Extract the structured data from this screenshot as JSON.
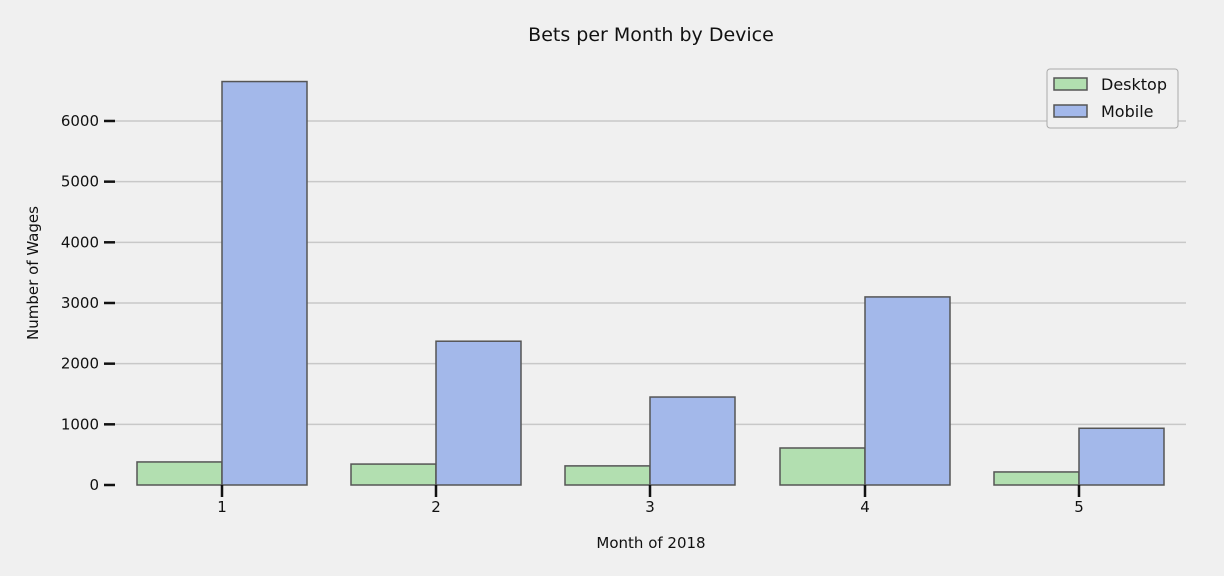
{
  "chart_data": {
    "type": "bar",
    "title": "Bets per Month by Device",
    "xlabel": "Month of 2018",
    "ylabel": "Number of Wages",
    "categories": [
      "1",
      "2",
      "3",
      "4",
      "5"
    ],
    "series": [
      {
        "name": "Desktop",
        "values": [
          380,
          345,
          315,
          610,
          215
        ],
        "color": "#b2dfb0"
      },
      {
        "name": "Mobile",
        "values": [
          6650,
          2370,
          1450,
          3100,
          935
        ],
        "color": "#a3b8ea"
      }
    ],
    "yticks": [
      0,
      1000,
      2000,
      3000,
      4000,
      5000,
      6000
    ],
    "ylim": [
      0,
      6900
    ],
    "grid": "horizontal",
    "legend": "top-right",
    "colors": {
      "background": "#f0f0f0",
      "grid": "#c8c8c8",
      "bar_edge": "#555555"
    }
  }
}
